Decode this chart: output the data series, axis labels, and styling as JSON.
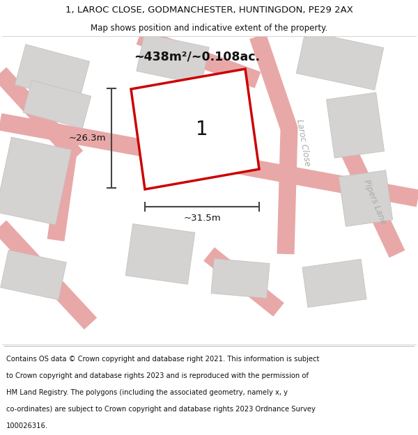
{
  "title_line1": "1, LAROC CLOSE, GODMANCHESTER, HUNTINGDON, PE29 2AX",
  "title_line2": "Map shows position and indicative extent of the property.",
  "area_text": "~438m²/~0.108ac.",
  "dim_width": "~31.5m",
  "dim_height": "~26.3m",
  "plot_label": "1",
  "road_label1": "Laroc Close",
  "road_label2": "Pipers Lane",
  "footer_text": "Contains OS data © Crown copyright and database right 2021. This information is subject to Crown copyright and database rights 2023 and is reproduced with the permission of HM Land Registry. The polygons (including the associated geometry, namely x, y co-ordinates) are subject to Crown copyright and database rights 2023 Ordnance Survey 100026316.",
  "map_bg": "#eeeceb",
  "plot_fill": "#ffffff",
  "plot_edge": "#cc0000",
  "building_fill": "#d5d3d2",
  "building_edge": "#c5c3c2",
  "road_line_color": "#e8a8a8",
  "dim_color": "#444444",
  "road_label_color": "#aaaaaa",
  "title_color": "#111111",
  "footer_color": "#111111",
  "white": "#ffffff"
}
